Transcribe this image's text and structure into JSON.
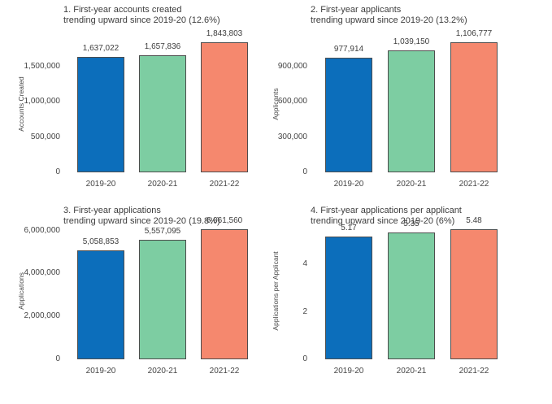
{
  "page": {
    "background": "#ffffff"
  },
  "palette": {
    "bar_blue": "#0c6ebb",
    "bar_green": "#7dcda2",
    "bar_coral": "#f5886e",
    "bar_border": "#4d4d4d",
    "title_text": "#3d3d3d",
    "tick_text": "#444444"
  },
  "chart_data": [
    {
      "type": "bar",
      "title": "1. First-year accounts created",
      "subtitle": "trending upward since 2019-20 (12.6%)",
      "ylabel": "Accounts Created",
      "xlabel": "",
      "categories": [
        "2019-20",
        "2020-21",
        "2021-22"
      ],
      "values": [
        1637022,
        1657836,
        1843803
      ],
      "value_labels": [
        "1,637,022",
        "1,657,836",
        "1,843,803"
      ],
      "bar_colors": [
        "#0c6ebb",
        "#7dcda2",
        "#f5886e"
      ],
      "ylim": [
        0,
        1935993
      ],
      "yticks": [
        {
          "value": 0,
          "label": "0"
        },
        {
          "value": 500000,
          "label": "500,000"
        },
        {
          "value": 1000000,
          "label": "1,000,000"
        },
        {
          "value": 1500000,
          "label": "1,500,000"
        }
      ],
      "grid": false,
      "legend": "none"
    },
    {
      "type": "bar",
      "title": "2. First-year applicants",
      "subtitle": "trending upward since 2019-20 (13.2%)",
      "ylabel": "Applicants",
      "xlabel": "",
      "categories": [
        "2019-20",
        "2020-21",
        "2021-22"
      ],
      "values": [
        977914,
        1039150,
        1106777
      ],
      "value_labels": [
        "977,914",
        "1,039,150",
        "1,106,777"
      ],
      "bar_colors": [
        "#0c6ebb",
        "#7dcda2",
        "#f5886e"
      ],
      "ylim": [
        0,
        1162116
      ],
      "yticks": [
        {
          "value": 0,
          "label": "0"
        },
        {
          "value": 300000,
          "label": "300,000"
        },
        {
          "value": 600000,
          "label": "600,000"
        },
        {
          "value": 900000,
          "label": "900,000"
        }
      ],
      "grid": false,
      "legend": "none"
    },
    {
      "type": "bar",
      "title": "3. First-year applications",
      "subtitle": "trending upward since 2019-20 (19.8%)",
      "ylabel": "Applications",
      "xlabel": "",
      "categories": [
        "2019-20",
        "2020-21",
        "2021-22"
      ],
      "values": [
        5058853,
        5557095,
        6061560
      ],
      "value_labels": [
        "5,058,853",
        "5,557,095",
        "6,061,560"
      ],
      "bar_colors": [
        "#0c6ebb",
        "#7dcda2",
        "#f5886e"
      ],
      "ylim": [
        0,
        6364638
      ],
      "yticks": [
        {
          "value": 0,
          "label": "0"
        },
        {
          "value": 2000000,
          "label": "2,000,000"
        },
        {
          "value": 4000000,
          "label": "4,000,000"
        },
        {
          "value": 6000000,
          "label": "6,000,000"
        }
      ],
      "grid": false,
      "legend": "none"
    },
    {
      "type": "bar",
      "title": "4. First-year applications per applicant",
      "subtitle": "trending upward since 2019-20 (6%)",
      "ylabel": "Applications per Applicant",
      "xlabel": "",
      "categories": [
        "2019-20",
        "2020-21",
        "2021-22"
      ],
      "values": [
        5.17,
        5.35,
        5.48
      ],
      "value_labels": [
        "5.17",
        "5.35",
        "5.48"
      ],
      "bar_colors": [
        "#0c6ebb",
        "#7dcda2",
        "#f5886e"
      ],
      "ylim": [
        0,
        5.754
      ],
      "yticks": [
        {
          "value": 0,
          "label": "0"
        },
        {
          "value": 2,
          "label": "2"
        },
        {
          "value": 4,
          "label": "4"
        }
      ],
      "grid": false,
      "legend": "none"
    }
  ]
}
